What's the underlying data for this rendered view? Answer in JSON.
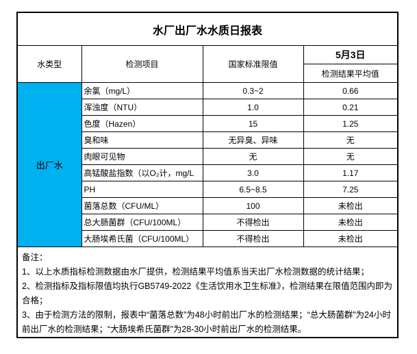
{
  "report": {
    "title": "水厂出厂水水质日报表",
    "columns": {
      "water_type": "水类型",
      "item": "检测项目",
      "standard_limit": "国家标准限值",
      "date": "5月3日",
      "result_avg": "检测结果平均值"
    },
    "water_type_value": "出厂水",
    "rows": [
      {
        "item": "余氯（mg/L）",
        "limit": "0.3~2",
        "result": "0.66"
      },
      {
        "item": "浑浊度（NTU）",
        "limit": "1.0",
        "result": "0.21"
      },
      {
        "item": "色度（Hazen）",
        "limit": "15",
        "result": "1.25"
      },
      {
        "item": "臭和味",
        "limit": "无异臭、异味",
        "result": "无"
      },
      {
        "item": "肉眼可见物",
        "limit": "无",
        "result": "无"
      },
      {
        "item": "高锰酸盐指数（以O₂计，mg/L",
        "limit": "3.0",
        "result": "1.17"
      },
      {
        "item": "PH",
        "limit": "6.5~8.5",
        "result": "7.25"
      },
      {
        "item": "菌落总数（CFU/ML）",
        "limit": "100",
        "result": "未检出"
      },
      {
        "item": "总大肠菌群（CFU/100ML）",
        "limit": "不得检出",
        "result": "未检出"
      },
      {
        "item": "大肠埃希氏菌（CFU/100ML）",
        "limit": "不得检出",
        "result": "未检出"
      }
    ],
    "notes": {
      "label": "备注：",
      "lines": [
        "1、以上水质指标检测数据由水厂提供，检测结果平均值系当天出厂水检测数据的统计结果；",
        "2、检测指标及指标限值均执行GB5749-2022《生活饮用水卫生标准》，检测结果在限值范围内即为合格；",
        "3、由于检测方法的限制，报表中“菌落总数”为48小时前出厂水的检测结果；“总大肠菌群”为24小时前出厂水的检测结果；“大肠埃希氏菌群”为28-30小时前出厂水的检测结果。"
      ]
    },
    "colors": {
      "water_type_bg": "#00B0F0",
      "border": "#000000"
    }
  }
}
